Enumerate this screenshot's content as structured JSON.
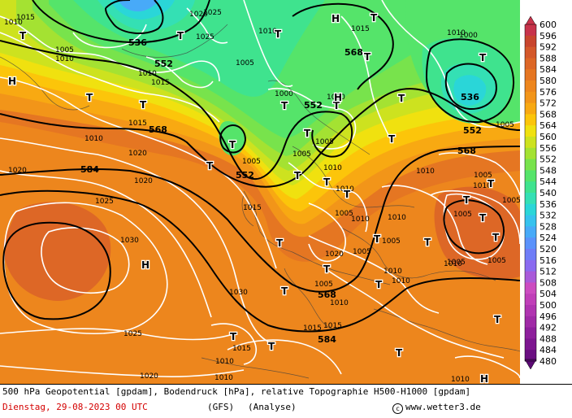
{
  "legend": {
    "min": 480,
    "max": 600,
    "step": 4,
    "labels": [
      "600",
      "596",
      "592",
      "588",
      "584",
      "580",
      "576",
      "572",
      "568",
      "564",
      "560",
      "556",
      "552",
      "548",
      "544",
      "540",
      "536",
      "532",
      "528",
      "524",
      "520",
      "516",
      "512",
      "508",
      "504",
      "500",
      "496",
      "492",
      "488",
      "484",
      "480"
    ],
    "colors": {
      "480": "#5c0a74",
      "484": "#6b0f82",
      "488": "#7d1690",
      "492": "#8e1f9c",
      "496": "#a02aa6",
      "500": "#b034b0",
      "504": "#c03fb8",
      "508": "#cc4cc0",
      "512": "#a95ad9",
      "516": "#8a6af0",
      "520": "#6f7df7",
      "524": "#5b92fb",
      "528": "#48aaf8",
      "532": "#36c2ee",
      "536": "#2ad6d8",
      "540": "#34e0b4",
      "544": "#3fe38e",
      "548": "#55e46a",
      "552": "#78e34c",
      "556": "#a4e232",
      "560": "#cde21f",
      "564": "#f0e10f",
      "568": "#fcc50a",
      "572": "#f8a912",
      "576": "#f29519",
      "580": "#ed861d",
      "584": "#e57622",
      "588": "#dd6726",
      "592": "#d4582a",
      "596": "#c8452d",
      "600": "#c7334b"
    }
  },
  "map": {
    "geopotential_labels": [
      "536",
      "552",
      "568",
      "584",
      "552",
      "568",
      "536",
      "552",
      "568",
      "552",
      "568",
      "584"
    ],
    "pressure_labels": [
      "1010",
      "1015",
      "1025",
      "1005",
      "1010",
      "1010",
      "1015",
      "1020",
      "1025",
      "1000",
      "1005",
      "1005",
      "1015",
      "1015",
      "1010",
      "1020",
      "1020",
      "1020",
      "1025",
      "1030",
      "1030",
      "1025",
      "1020",
      "1015",
      "1010",
      "1010",
      "1005",
      "1015",
      "1010",
      "1015",
      "1005",
      "1010",
      "1010",
      "1015",
      "1020",
      "1010",
      "1005",
      "1005",
      "1010",
      "1010",
      "1010",
      "1010",
      "1005",
      "1010",
      "1005",
      "1005",
      "1005",
      "1010",
      "1010",
      "1000",
      "1005",
      "1000",
      "1005",
      "1010",
      "1010",
      "1005",
      "1005"
    ],
    "pressure_centers": [
      "H",
      "T",
      "T",
      "T",
      "T",
      "H",
      "T",
      "T",
      "T",
      "T",
      "T",
      "T",
      "T",
      "T",
      "T",
      "T",
      "T",
      "H",
      "T",
      "T",
      "T",
      "T",
      "T",
      "T",
      "T",
      "T",
      "T",
      "T",
      "T",
      "T",
      "T",
      "T",
      "T",
      "H",
      "T",
      "T",
      "H"
    ]
  },
  "footer": {
    "title": "500 hPa Geopotential [gpdam], Bodendruck [hPa], relative Topographie H500-H1000 [gpdam]",
    "date": "Dienstag, 29-08-2023  00 UTC",
    "model": "(GFS)",
    "analysis": "(Analyse)",
    "credit": "www.wetter3.de"
  }
}
